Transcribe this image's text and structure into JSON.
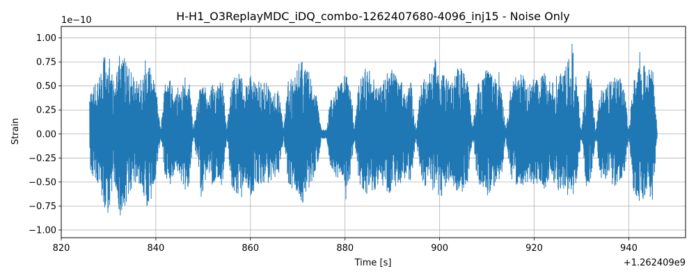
{
  "chart_data": {
    "type": "line",
    "title": "H-H1_O3ReplayMDC_iDQ_combo-1262407680-4096_inj15 - Noise Only",
    "xlabel": "Time [s]",
    "ylabel": "Strain",
    "x_offset_label": "+1.262409e9",
    "y_scale_label": "1e−10",
    "xlim": [
      820,
      952
    ],
    "ylim": [
      -1.08,
      1.12
    ],
    "x_ticks": [
      820,
      840,
      860,
      880,
      900,
      920,
      940
    ],
    "x_tick_labels": [
      "820",
      "840",
      "860",
      "880",
      "900",
      "920",
      "940"
    ],
    "y_ticks": [
      -1.0,
      -0.75,
      -0.5,
      -0.25,
      0.0,
      0.25,
      0.5,
      0.75,
      1.0
    ],
    "y_tick_labels": [
      "−1.00",
      "−0.75",
      "−0.50",
      "−0.25",
      "0.00",
      "0.25",
      "0.50",
      "0.75",
      "1.00"
    ],
    "grid": true,
    "series": [
      {
        "color": "#1f77b4",
        "x_range": [
          826,
          946
        ],
        "amplitude": 1.0,
        "envelope": [
          [
            826,
            0.42,
            0.35
          ],
          [
            827,
            0.55,
            0.5
          ],
          [
            828,
            0.6,
            0.55
          ],
          [
            829,
            0.8,
            0.75
          ],
          [
            830,
            0.85,
            0.85
          ],
          [
            831,
            0.55,
            0.5
          ],
          [
            832,
            0.8,
            0.9
          ],
          [
            833,
            0.88,
            0.8
          ],
          [
            834,
            0.75,
            0.7
          ],
          [
            835,
            0.65,
            0.55
          ],
          [
            836,
            0.55,
            0.5
          ],
          [
            837,
            0.62,
            0.6
          ],
          [
            838,
            0.85,
            0.82
          ],
          [
            839,
            0.7,
            0.65
          ],
          [
            840,
            0.5,
            0.45
          ],
          [
            841,
            0.05,
            0.05
          ],
          [
            842,
            0.55,
            0.45
          ],
          [
            843,
            0.6,
            0.55
          ],
          [
            844,
            0.4,
            0.4
          ],
          [
            845,
            0.45,
            0.45
          ],
          [
            846,
            0.6,
            0.6
          ],
          [
            847,
            0.6,
            0.55
          ],
          [
            848,
            0.05,
            0.05
          ],
          [
            849,
            0.45,
            0.4
          ],
          [
            850,
            0.65,
            0.65
          ],
          [
            851,
            0.35,
            0.35
          ],
          [
            852,
            0.55,
            0.55
          ],
          [
            853,
            0.45,
            0.45
          ],
          [
            854,
            0.6,
            0.6
          ],
          [
            855,
            0.05,
            0.05
          ],
          [
            856,
            0.55,
            0.55
          ],
          [
            857,
            0.7,
            0.65
          ],
          [
            858,
            0.6,
            0.6
          ],
          [
            859,
            0.5,
            0.5
          ],
          [
            860,
            0.65,
            0.7
          ],
          [
            861,
            0.55,
            0.55
          ],
          [
            862,
            0.6,
            0.55
          ],
          [
            863,
            0.55,
            0.55
          ],
          [
            864,
            0.5,
            0.5
          ],
          [
            865,
            0.45,
            0.45
          ],
          [
            866,
            0.45,
            0.45
          ],
          [
            867,
            0.05,
            0.05
          ],
          [
            868,
            0.55,
            0.55
          ],
          [
            869,
            0.6,
            0.6
          ],
          [
            870,
            0.7,
            0.65
          ],
          [
            871,
            0.85,
            0.75
          ],
          [
            872,
            0.7,
            0.65
          ],
          [
            873,
            0.55,
            0.5
          ],
          [
            874,
            0.4,
            0.4
          ],
          [
            875,
            0.05,
            0.05
          ],
          [
            876,
            0.05,
            0.05
          ],
          [
            877,
            0.4,
            0.35
          ],
          [
            878,
            0.45,
            0.45
          ],
          [
            879,
            0.55,
            0.5
          ],
          [
            880,
            0.65,
            0.6
          ],
          [
            881,
            0.55,
            0.5
          ],
          [
            882,
            0.05,
            0.05
          ],
          [
            883,
            0.6,
            0.55
          ],
          [
            884,
            0.65,
            0.6
          ],
          [
            885,
            0.7,
            0.65
          ],
          [
            886,
            0.6,
            0.6
          ],
          [
            887,
            0.55,
            0.55
          ],
          [
            888,
            0.6,
            0.6
          ],
          [
            889,
            0.65,
            0.6
          ],
          [
            890,
            0.7,
            0.65
          ],
          [
            891,
            0.6,
            0.55
          ],
          [
            892,
            0.55,
            0.5
          ],
          [
            893,
            0.45,
            0.45
          ],
          [
            894,
            0.55,
            0.5
          ],
          [
            895,
            0.05,
            0.05
          ],
          [
            896,
            0.5,
            0.45
          ],
          [
            897,
            0.6,
            0.55
          ],
          [
            898,
            0.55,
            0.5
          ],
          [
            899,
            0.8,
            0.7
          ],
          [
            900,
            0.7,
            0.75
          ],
          [
            901,
            0.65,
            0.6
          ],
          [
            902,
            0.55,
            0.5
          ],
          [
            903,
            0.6,
            0.55
          ],
          [
            904,
            0.75,
            0.65
          ],
          [
            905,
            0.65,
            0.6
          ],
          [
            906,
            0.55,
            0.5
          ],
          [
            907,
            0.05,
            0.05
          ],
          [
            908,
            0.55,
            0.5
          ],
          [
            909,
            0.65,
            0.6
          ],
          [
            910,
            0.7,
            0.65
          ],
          [
            911,
            0.65,
            0.6
          ],
          [
            912,
            0.55,
            0.5
          ],
          [
            913,
            0.5,
            0.5
          ],
          [
            914,
            0.05,
            0.05
          ],
          [
            915,
            0.5,
            0.45
          ],
          [
            916,
            0.6,
            0.55
          ],
          [
            917,
            0.65,
            0.6
          ],
          [
            918,
            0.6,
            0.55
          ],
          [
            919,
            0.55,
            0.5
          ],
          [
            920,
            0.6,
            0.55
          ],
          [
            921,
            0.55,
            0.5
          ],
          [
            922,
            0.65,
            0.6
          ],
          [
            923,
            0.55,
            0.5
          ],
          [
            924,
            0.6,
            0.55
          ],
          [
            925,
            0.7,
            0.6
          ],
          [
            926,
            0.6,
            0.55
          ],
          [
            927,
            0.75,
            0.65
          ],
          [
            928,
            0.95,
            0.6
          ],
          [
            929,
            0.55,
            0.5
          ],
          [
            930,
            0.05,
            0.05
          ],
          [
            931,
            0.65,
            0.55
          ],
          [
            932,
            0.6,
            0.5
          ],
          [
            933,
            0.05,
            0.05
          ],
          [
            934,
            0.45,
            0.45
          ],
          [
            935,
            0.5,
            0.5
          ],
          [
            936,
            0.55,
            0.5
          ],
          [
            937,
            0.6,
            0.55
          ],
          [
            938,
            0.6,
            0.5
          ],
          [
            939,
            0.5,
            0.45
          ],
          [
            940,
            0.05,
            0.05
          ],
          [
            941,
            0.6,
            0.6
          ],
          [
            942,
            0.7,
            0.7
          ],
          [
            943,
            0.75,
            0.7
          ],
          [
            944,
            0.65,
            0.6
          ],
          [
            945,
            0.75,
            0.7
          ],
          [
            946,
            0.05,
            0.05
          ]
        ]
      }
    ]
  }
}
